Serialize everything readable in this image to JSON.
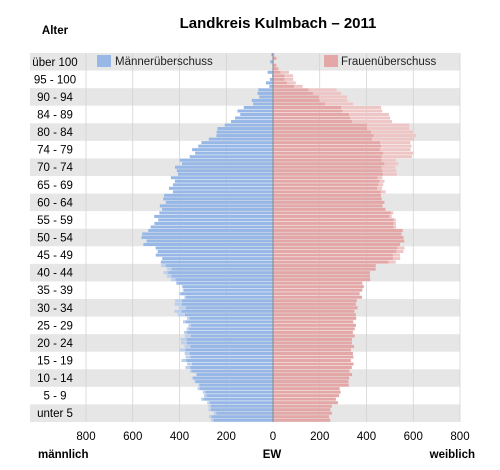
{
  "chart_data": {
    "type": "bar",
    "orientation": "horizontal",
    "title": "Landkreis Kulmbach – 2011",
    "y_axis_title": "Alter",
    "xlabel": "EW",
    "x_left_label": "männlich",
    "x_right_label": "weiblich",
    "xlim": [
      -800,
      800
    ],
    "x_ticks": [
      -800,
      -600,
      -400,
      -200,
      0,
      200,
      400,
      600,
      800
    ],
    "x_tick_labels": [
      "800",
      "600",
      "400",
      "200",
      "0",
      "200",
      "400",
      "600",
      "800"
    ],
    "age_group_labels": [
      "unter 5",
      "5 - 9",
      "10 - 14",
      "15 - 19",
      "20 - 24",
      "25 - 29",
      "30 - 34",
      "35 - 39",
      "40 - 44",
      "45 - 49",
      "50 - 54",
      "55 - 59",
      "60 - 64",
      "65 - 69",
      "70 - 74",
      "74 - 79",
      "80 - 84",
      "84 - 89",
      "90 - 94",
      "95 - 100",
      "über 100"
    ],
    "legend": [
      "Männerüberschuss",
      "Frauenüberschuss"
    ],
    "legend_position": "top",
    "colors": {
      "male": "#97b8e6",
      "male_surplus": "#bcd0ee",
      "female": "#e3a7a7",
      "female_surplus": "#eec6c6",
      "band": "#e6e6e6",
      "grid": "#cfcfcf"
    },
    "male_5yr_avg": [
      255,
      290,
      335,
      360,
      365,
      360,
      385,
      385,
      440,
      490,
      560,
      500,
      470,
      430,
      410,
      335,
      240,
      150,
      70,
      14,
      2
    ],
    "female_5yr_avg": [
      245,
      280,
      330,
      340,
      340,
      350,
      355,
      380,
      420,
      520,
      560,
      510,
      470,
      450,
      470,
      465,
      420,
      320,
      190,
      50,
      6
    ],
    "surplus_5yr_avg": [
      10,
      10,
      5,
      20,
      25,
      10,
      30,
      5,
      20,
      -30,
      0,
      -10,
      0,
      -20,
      -60,
      -130,
      -180,
      -170,
      -120,
      -36,
      -4
    ]
  }
}
